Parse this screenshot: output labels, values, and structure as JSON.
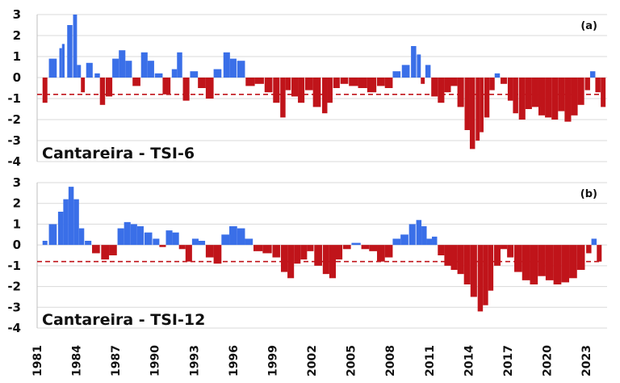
{
  "chart_data": [
    {
      "type": "bar",
      "title": "Cantareira - TSI-6",
      "panel_label": "(a)",
      "ylim": [
        -4,
        3
      ],
      "yticks": [
        "3",
        "2",
        "1",
        "0",
        "-1",
        "-2",
        "-3",
        "-4"
      ],
      "threshold": -0.8,
      "colors": {
        "positive": "#3a6fe8",
        "negative": "#c0141a",
        "threshold": "#c0141a",
        "grid": "#d9d9d9"
      },
      "x": [
        1981.6,
        1982.2,
        1982.8,
        1983.0,
        1983.5,
        1983.9,
        1984.2,
        1984.5,
        1985.0,
        1985.6,
        1986.0,
        1986.5,
        1987.0,
        1987.5,
        1988.0,
        1988.6,
        1989.2,
        1989.7,
        1990.3,
        1990.9,
        1991.5,
        1991.9,
        1992.4,
        1993.0,
        1993.6,
        1994.2,
        1994.8,
        1995.5,
        1996.0,
        1996.6,
        1997.3,
        1998.0,
        1998.7,
        1999.3,
        1999.8,
        2000.2,
        2000.7,
        2001.2,
        2001.8,
        2002.4,
        2003.0,
        2003.4,
        2003.9,
        2004.5,
        2005.2,
        2005.9,
        2006.6,
        2007.3,
        2007.9,
        2008.5,
        2009.2,
        2009.8,
        2010.2,
        2010.5,
        2010.9,
        2011.4,
        2011.9,
        2012.4,
        2012.9,
        2013.4,
        2013.9,
        2014.3,
        2014.7,
        2015.0,
        2015.4,
        2015.8,
        2016.2,
        2016.7,
        2017.2,
        2017.6,
        2018.1,
        2018.6,
        2019.1,
        2019.6,
        2020.1,
        2020.6,
        2021.1,
        2021.6,
        2022.1,
        2022.6,
        2023.1,
        2023.5,
        2023.9,
        2024.3
      ],
      "values": [
        -1.2,
        0.9,
        1.4,
        1.6,
        2.5,
        3.0,
        0.6,
        -0.7,
        0.7,
        0.2,
        -1.3,
        -0.9,
        0.9,
        1.3,
        0.8,
        -0.4,
        1.2,
        0.8,
        0.2,
        -0.8,
        0.4,
        1.2,
        -1.1,
        0.3,
        -0.5,
        -1.0,
        0.4,
        1.2,
        0.9,
        0.8,
        -0.4,
        -0.3,
        -0.7,
        -1.2,
        -1.9,
        -0.6,
        -0.9,
        -1.2,
        -0.6,
        -1.4,
        -1.7,
        -1.2,
        -0.5,
        -0.3,
        -0.4,
        -0.5,
        -0.7,
        -0.4,
        -0.5,
        0.3,
        0.6,
        1.5,
        1.1,
        -0.3,
        0.6,
        -0.9,
        -1.2,
        -0.7,
        -0.4,
        -1.4,
        -2.5,
        -3.4,
        -3.0,
        -2.6,
        -1.9,
        -0.6,
        0.2,
        -0.3,
        -1.1,
        -1.7,
        -2.0,
        -1.5,
        -1.4,
        -1.8,
        -1.9,
        -2.0,
        -1.6,
        -2.1,
        -1.8,
        -1.3,
        -0.6,
        0.3,
        -0.7,
        -1.4
      ]
    },
    {
      "type": "bar",
      "title": "Cantareira - TSI-12",
      "panel_label": "(b)",
      "ylim": [
        -4,
        3
      ],
      "yticks": [
        "3",
        "2",
        "1",
        "0",
        "-1",
        "-2",
        "-3",
        "-4"
      ],
      "threshold": -0.8,
      "colors": {
        "positive": "#3a6fe8",
        "negative": "#c0141a",
        "threshold": "#c0141a",
        "grid": "#d9d9d9"
      },
      "x": [
        1981.6,
        1982.2,
        1982.8,
        1983.2,
        1983.6,
        1984.0,
        1984.4,
        1984.9,
        1985.5,
        1986.2,
        1986.8,
        1987.4,
        1987.9,
        1988.4,
        1988.9,
        1989.5,
        1990.1,
        1990.6,
        1991.1,
        1991.6,
        1992.1,
        1992.6,
        1993.1,
        1993.6,
        1994.2,
        1994.8,
        1995.4,
        1996.0,
        1996.6,
        1997.2,
        1997.9,
        1998.6,
        1999.3,
        1999.9,
        2000.4,
        2000.9,
        2001.4,
        2001.9,
        2002.5,
        2003.1,
        2003.6,
        2004.1,
        2004.7,
        2005.4,
        2006.1,
        2006.7,
        2007.3,
        2007.9,
        2008.5,
        2009.1,
        2009.7,
        2010.2,
        2010.6,
        2011.0,
        2011.4,
        2011.9,
        2012.4,
        2012.9,
        2013.4,
        2013.9,
        2014.4,
        2014.9,
        2015.3,
        2015.7,
        2016.2,
        2016.7,
        2017.2,
        2017.8,
        2018.4,
        2019.0,
        2019.6,
        2020.2,
        2020.8,
        2021.4,
        2022.0,
        2022.6,
        2023.2,
        2023.6,
        2024.0
      ],
      "values": [
        0.2,
        1.0,
        1.6,
        2.2,
        2.8,
        2.2,
        0.8,
        0.2,
        -0.4,
        -0.7,
        -0.5,
        0.8,
        1.1,
        1.0,
        0.9,
        0.6,
        0.3,
        -0.1,
        0.7,
        0.6,
        -0.2,
        -0.8,
        0.3,
        0.2,
        -0.6,
        -0.9,
        0.5,
        0.9,
        0.8,
        0.3,
        -0.3,
        -0.4,
        -0.6,
        -1.3,
        -1.6,
        -0.9,
        -0.7,
        -0.3,
        -1.0,
        -1.4,
        -1.6,
        -0.7,
        -0.2,
        0.1,
        -0.2,
        -0.3,
        -0.8,
        -0.6,
        0.3,
        0.5,
        1.0,
        1.2,
        0.9,
        0.3,
        0.4,
        -0.5,
        -1.0,
        -1.2,
        -1.4,
        -1.9,
        -2.5,
        -3.2,
        -2.9,
        -2.2,
        -1.0,
        -0.2,
        -0.6,
        -1.3,
        -1.7,
        -1.9,
        -1.5,
        -1.7,
        -1.9,
        -1.8,
        -1.6,
        -1.2,
        -0.4,
        0.3,
        -0.8
      ]
    }
  ],
  "x_axis": {
    "range": [
      1981,
      2024.6
    ],
    "ticks": [
      "1981",
      "1984",
      "1987",
      "1990",
      "1993",
      "1996",
      "1999",
      "2002",
      "2005",
      "2008",
      "2011",
      "2014",
      "2017",
      "2020",
      "2023"
    ]
  }
}
